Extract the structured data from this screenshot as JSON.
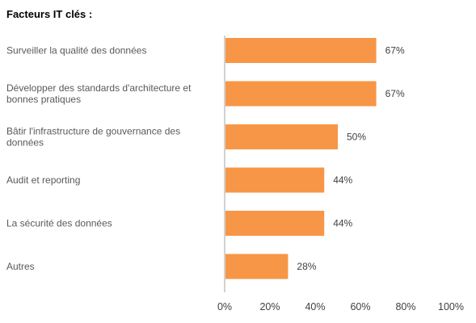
{
  "chart_data": {
    "type": "bar",
    "orientation": "horizontal",
    "title": "Facteurs  IT clés :",
    "categories": [
      [
        "Surveiller  la qualité des données"
      ],
      [
        "Développer des standards d'architecture et",
        "bonnes pratiques"
      ],
      [
        "Bâtir l'infrastructure de gouvernance des",
        "données"
      ],
      [
        "Audit  et reporting"
      ],
      [
        "La sécurité des données"
      ],
      [
        "Autres"
      ]
    ],
    "values": [
      67,
      67,
      50,
      44,
      44,
      28
    ],
    "value_labels": [
      "67%",
      "67%",
      "50%",
      "44%",
      "44%",
      "28%"
    ],
    "xlim": [
      0,
      100
    ],
    "x_ticks": [
      0,
      20,
      40,
      60,
      80,
      100
    ],
    "x_tick_labels": [
      "0%",
      "20%",
      "40%",
      "60%",
      "80%",
      "100%"
    ],
    "xlabel": "",
    "ylabel": "",
    "grid": false,
    "legend": "none",
    "colors": {
      "bar": "#F79646",
      "axis": "#A6A6A6"
    }
  }
}
